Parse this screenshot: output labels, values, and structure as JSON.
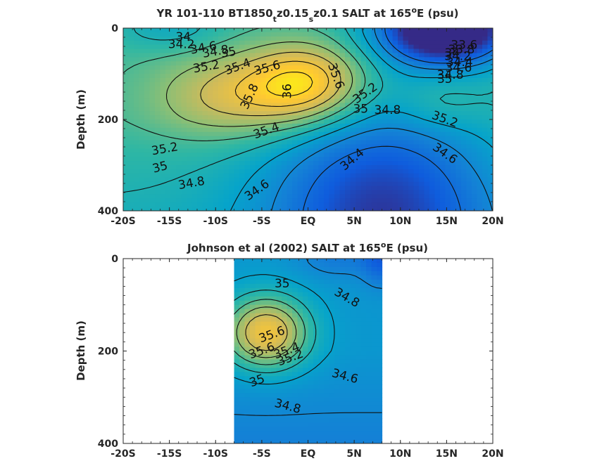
{
  "chart_data": [
    {
      "type": "heatmap",
      "title_parts": [
        "YR 101-110 BT1850",
        "t",
        "z0.15",
        "s",
        "z0.1 SALT at 165",
        "o",
        "E (psu)"
      ],
      "ylabel": "Depth (m)",
      "xlabel": "",
      "xlim": [
        -20,
        20
      ],
      "ylim": [
        0,
        400
      ],
      "y_reversed": true,
      "x_ticks": [
        {
          "value": -20,
          "label": "-20S"
        },
        {
          "value": -15,
          "label": "-15S"
        },
        {
          "value": -10,
          "label": "-10S"
        },
        {
          "value": -5,
          "label": "-5S"
        },
        {
          "value": 0,
          "label": "EQ"
        },
        {
          "value": 5,
          "label": "5N"
        },
        {
          "value": 10,
          "label": "10N"
        },
        {
          "value": 15,
          "label": "15N"
        },
        {
          "value": 20,
          "label": "20N"
        }
      ],
      "y_ticks": [
        {
          "value": 0,
          "label": "0"
        },
        {
          "value": 200,
          "label": "200"
        },
        {
          "value": 400,
          "label": "400"
        }
      ],
      "data_extent": {
        "lat": [
          -20,
          20
        ],
        "depth": [
          0,
          400
        ]
      },
      "colormap": [
        "#352a87",
        "#0f5cdd",
        "#1481d6",
        "#06a4ca",
        "#2eb7a4",
        "#87bf77",
        "#d1bb59",
        "#fec832",
        "#f9fb0e"
      ],
      "color_range_psu": [
        34.0,
        36.2
      ],
      "cores": [
        {
          "lat": -15,
          "depth": 0,
          "value": 34.9,
          "slat": 4,
          "sdep": 35
        },
        {
          "lat": 15,
          "depth": 0,
          "value": 33.5,
          "slat": 5,
          "sdep": 55
        },
        {
          "lat": 0,
          "depth": 120,
          "value": 36.05,
          "slat": 4.5,
          "sdep": 60
        },
        {
          "lat": -8,
          "depth": 150,
          "value": 35.7,
          "slat": 6,
          "sdep": 65
        },
        {
          "lat": 14,
          "depth": 160,
          "value": 35.35,
          "slat": 3.5,
          "sdep": 45
        },
        {
          "lat": 8,
          "depth": 380,
          "value": 34.25,
          "slat": 9,
          "sdep": 180
        }
      ],
      "contour_levels": [
        34.4,
        34.6,
        34.8,
        35.0,
        35.2,
        35.4,
        35.6,
        35.8,
        36.0
      ],
      "contour_labels": [
        {
          "text": "34",
          "lat": -13.5,
          "depth": 20,
          "angle": 0
        },
        {
          "text": "34.2",
          "lat": -13.7,
          "depth": 36,
          "angle": 0
        },
        {
          "text": "34.6",
          "lat": -11.3,
          "depth": 44,
          "angle": -10
        },
        {
          "text": "34.8",
          "lat": -10,
          "depth": 52,
          "angle": -10
        },
        {
          "text": "35",
          "lat": -8.6,
          "depth": 54,
          "angle": -10
        },
        {
          "text": "35.2",
          "lat": -11,
          "depth": 85,
          "angle": -10
        },
        {
          "text": "35.4",
          "lat": -7.6,
          "depth": 85,
          "angle": -20
        },
        {
          "text": "35.6",
          "lat": -4.4,
          "depth": 88,
          "angle": -15
        },
        {
          "text": "35.8",
          "lat": -6.3,
          "depth": 150,
          "angle": -65
        },
        {
          "text": "36",
          "lat": -2.2,
          "depth": 138,
          "angle": -90
        },
        {
          "text": "35.6",
          "lat": 3.0,
          "depth": 105,
          "angle": 70
        },
        {
          "text": "35.2",
          "lat": 6.2,
          "depth": 143,
          "angle": -35
        },
        {
          "text": "35",
          "lat": 5.7,
          "depth": 178,
          "angle": 0
        },
        {
          "text": "34.8",
          "lat": 8.6,
          "depth": 180,
          "angle": 0
        },
        {
          "text": "35.4",
          "lat": -4.5,
          "depth": 225,
          "angle": -20
        },
        {
          "text": "35.2",
          "lat": 14.8,
          "depth": 200,
          "angle": 20
        },
        {
          "text": "35",
          "lat": 14.8,
          "depth": 112,
          "angle": 0
        },
        {
          "text": "34.8",
          "lat": 15.4,
          "depth": 103,
          "angle": 0
        },
        {
          "text": "34.6",
          "lat": 16.3,
          "depth": 88,
          "angle": 0
        },
        {
          "text": "34.4",
          "lat": 16.4,
          "depth": 75,
          "angle": 0
        },
        {
          "text": "34.2",
          "lat": 16.2,
          "depth": 62,
          "angle": 0
        },
        {
          "text": "34",
          "lat": 15.6,
          "depth": 55,
          "angle": 0
        },
        {
          "text": "33.8",
          "lat": 16.6,
          "depth": 48,
          "angle": 0
        },
        {
          "text": "33.6",
          "lat": 16.9,
          "depth": 38,
          "angle": 0
        },
        {
          "text": "35.2",
          "lat": -15.5,
          "depth": 265,
          "angle": -10
        },
        {
          "text": "35",
          "lat": -16,
          "depth": 305,
          "angle": -15
        },
        {
          "text": "34.8",
          "lat": -12.6,
          "depth": 340,
          "angle": -10
        },
        {
          "text": "34.6",
          "lat": -5.5,
          "depth": 355,
          "angle": -35
        },
        {
          "text": "34.4",
          "lat": 4.8,
          "depth": 288,
          "angle": -40
        },
        {
          "text": "34.6",
          "lat": 14.8,
          "depth": 275,
          "angle": 35
        }
      ]
    },
    {
      "type": "heatmap",
      "title_parts": [
        "Johnson et al (2002) SALT at 165",
        "o",
        "E (psu)"
      ],
      "ylabel": "Depth (m)",
      "xlabel": "",
      "xlim": [
        -20,
        20
      ],
      "ylim": [
        0,
        400
      ],
      "y_reversed": true,
      "x_ticks": [
        {
          "value": -20,
          "label": "-20S"
        },
        {
          "value": -15,
          "label": "-15S"
        },
        {
          "value": -10,
          "label": "-10S"
        },
        {
          "value": -5,
          "label": "-5S"
        },
        {
          "value": 0,
          "label": "EQ"
        },
        {
          "value": 5,
          "label": "5N"
        },
        {
          "value": 10,
          "label": "10N"
        },
        {
          "value": 15,
          "label": "15N"
        },
        {
          "value": 20,
          "label": "20N"
        }
      ],
      "y_ticks": [
        {
          "value": 0,
          "label": "0"
        },
        {
          "value": 200,
          "label": "200"
        },
        {
          "value": 400,
          "label": "400"
        }
      ],
      "data_extent": {
        "lat": [
          -8,
          8
        ],
        "depth": [
          0,
          400
        ]
      },
      "colormap": [
        "#352a87",
        "#0f5cdd",
        "#1481d6",
        "#06a4ca",
        "#2eb7a4",
        "#87bf77",
        "#d1bb59",
        "#fec832",
        "#f9fb0e"
      ],
      "color_range_psu": [
        34.0,
        36.2
      ],
      "cores": [
        {
          "lat": -4.5,
          "depth": 160,
          "value": 35.85,
          "slat": 3.2,
          "sdep": 55
        },
        {
          "lat": 8,
          "depth": 0,
          "value": 34.3,
          "slat": 1.5,
          "sdep": 40
        },
        {
          "lat": 3,
          "depth": 0,
          "value": 34.5,
          "slat": 3,
          "sdep": 30
        }
      ],
      "contour_levels": [
        34.6,
        34.8,
        35.0,
        35.2,
        35.4,
        35.6
      ],
      "contour_labels": [
        {
          "text": "35",
          "lat": -2.8,
          "depth": 55,
          "angle": 0
        },
        {
          "text": "34.8",
          "lat": 4.2,
          "depth": 85,
          "angle": 30
        },
        {
          "text": "35.6",
          "lat": -3.9,
          "depth": 165,
          "angle": -20
        },
        {
          "text": "35.4",
          "lat": -2.3,
          "depth": 200,
          "angle": -20
        },
        {
          "text": "35.2",
          "lat": -1.9,
          "depth": 215,
          "angle": -20
        },
        {
          "text": "35.6",
          "lat": -5.0,
          "depth": 200,
          "angle": -20
        },
        {
          "text": "34.6",
          "lat": 4.0,
          "depth": 255,
          "angle": 15
        },
        {
          "text": "35",
          "lat": -5.5,
          "depth": 265,
          "angle": -20
        },
        {
          "text": "34.8",
          "lat": -2.2,
          "depth": 320,
          "angle": 15
        }
      ]
    }
  ]
}
